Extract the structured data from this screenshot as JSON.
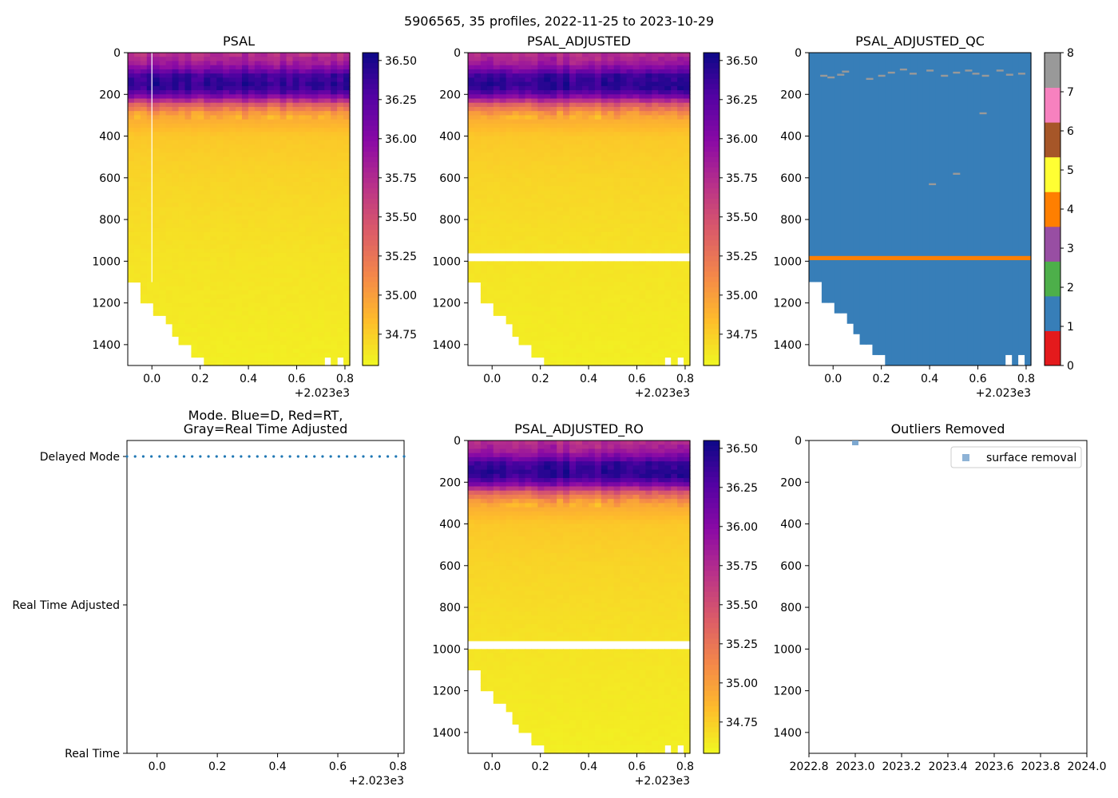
{
  "suptitle": "5906565, 35 profiles, 2022-11-25 to 2023-10-29",
  "colors": {
    "mode_dot": "#1f77b4",
    "surface_removal": "#7aa6cf",
    "adjusted_gap": "#ffffff"
  },
  "chart_data": [
    {
      "id": "psal",
      "type": "heatmap",
      "title": "PSAL",
      "x_ticks": [
        "0.0",
        "0.2",
        "0.4",
        "0.6",
        "0.8"
      ],
      "x_offset_label": "+2.023e3",
      "xlim": [
        -0.1,
        0.82
      ],
      "y_ticks": [
        "0",
        "200",
        "400",
        "600",
        "800",
        "1000",
        "1200",
        "1400"
      ],
      "ylim": [
        1500,
        0
      ],
      "colorbar_ticks": [
        "36.50",
        "36.25",
        "36.00",
        "35.75",
        "35.50",
        "35.25",
        "35.00",
        "34.75"
      ],
      "colorbar_range": [
        34.55,
        36.55
      ],
      "colormap": "plasma_r",
      "salinity_profile": [
        {
          "depth": 0,
          "value": 35.7
        },
        {
          "depth": 60,
          "value": 35.9
        },
        {
          "depth": 110,
          "value": 36.35
        },
        {
          "depth": 160,
          "value": 36.45
        },
        {
          "depth": 200,
          "value": 36.2
        },
        {
          "depth": 250,
          "value": 35.4
        },
        {
          "depth": 300,
          "value": 34.95
        },
        {
          "depth": 400,
          "value": 34.78
        },
        {
          "depth": 600,
          "value": 34.72
        },
        {
          "depth": 1000,
          "value": 34.65
        },
        {
          "depth": 1500,
          "value": 34.6
        }
      ],
      "adjusted_gap_depth": null
    },
    {
      "id": "psal_adjusted",
      "type": "heatmap",
      "title": "PSAL_ADJUSTED",
      "x_ticks": [
        "0.0",
        "0.2",
        "0.4",
        "0.6",
        "0.8"
      ],
      "x_offset_label": "+2.023e3",
      "xlim": [
        -0.1,
        0.82
      ],
      "y_ticks": [
        "0",
        "200",
        "400",
        "600",
        "800",
        "1000",
        "1200",
        "1400"
      ],
      "ylim": [
        1500,
        0
      ],
      "colorbar_ticks": [
        "36.50",
        "36.25",
        "36.00",
        "35.75",
        "35.50",
        "35.25",
        "35.00",
        "34.75"
      ],
      "colorbar_range": [
        34.55,
        36.55
      ],
      "colormap": "plasma_r",
      "adjusted_gap_depth": [
        975,
        995
      ]
    },
    {
      "id": "psal_adjusted_qc",
      "type": "heatmap",
      "title": "PSAL_ADJUSTED_QC",
      "x_ticks": [
        "0.0",
        "0.2",
        "0.4",
        "0.6",
        "0.8"
      ],
      "x_offset_label": "+2.023e3",
      "xlim": [
        -0.1,
        0.82
      ],
      "y_ticks": [
        "0",
        "200",
        "400",
        "600",
        "800",
        "1000",
        "1200",
        "1400"
      ],
      "ylim": [
        1500,
        0
      ],
      "colorbar_ticks": [
        "0",
        "1",
        "2",
        "3",
        "4",
        "5",
        "6",
        "7",
        "8"
      ],
      "qc_colors": [
        "#e41a1c",
        "#377eb8",
        "#4daf4a",
        "#984ea3",
        "#ff7f00",
        "#ffff33",
        "#a65628",
        "#f781bf",
        "#999999"
      ],
      "dominant_flag": 1,
      "flag4_band_depth": [
        975,
        995
      ],
      "flag8_marks": [
        {
          "x": -0.04,
          "depth": 110
        },
        {
          "x": -0.01,
          "depth": 118
        },
        {
          "x": 0.03,
          "depth": 105
        },
        {
          "x": 0.05,
          "depth": 90
        },
        {
          "x": 0.15,
          "depth": 125
        },
        {
          "x": 0.2,
          "depth": 110
        },
        {
          "x": 0.24,
          "depth": 95
        },
        {
          "x": 0.29,
          "depth": 80
        },
        {
          "x": 0.33,
          "depth": 100
        },
        {
          "x": 0.4,
          "depth": 85
        },
        {
          "x": 0.46,
          "depth": 110
        },
        {
          "x": 0.51,
          "depth": 95
        },
        {
          "x": 0.56,
          "depth": 85
        },
        {
          "x": 0.59,
          "depth": 100
        },
        {
          "x": 0.63,
          "depth": 110
        },
        {
          "x": 0.69,
          "depth": 85
        },
        {
          "x": 0.73,
          "depth": 105
        },
        {
          "x": 0.78,
          "depth": 100
        },
        {
          "x": 0.62,
          "depth": 290
        },
        {
          "x": 0.51,
          "depth": 580
        },
        {
          "x": 0.41,
          "depth": 630
        }
      ]
    },
    {
      "id": "mode",
      "type": "scatter",
      "title": "Mode. Blue=D, Red=RT,\nGray=Real Time Adjusted",
      "title_lines": [
        "Mode. Blue=D, Red=RT,",
        "Gray=Real Time Adjusted"
      ],
      "y_categories": [
        "Delayed Mode",
        "Real Time Adjusted",
        "Real Time"
      ],
      "x_ticks": [
        "0.0",
        "0.2",
        "0.4",
        "0.6",
        "0.8"
      ],
      "x_offset_label": "+2.023e3",
      "xlim": [
        -0.1,
        0.82
      ],
      "n_points": 35,
      "x_start": -0.1,
      "x_end": 0.82,
      "point_category": "Delayed Mode"
    },
    {
      "id": "psal_adjusted_ro",
      "type": "heatmap",
      "title": "PSAL_ADJUSTED_RO",
      "x_ticks": [
        "0.0",
        "0.2",
        "0.4",
        "0.6",
        "0.8"
      ],
      "x_offset_label": "+2.023e3",
      "xlim": [
        -0.1,
        0.82
      ],
      "y_ticks": [
        "0",
        "200",
        "400",
        "600",
        "800",
        "1000",
        "1200",
        "1400"
      ],
      "ylim": [
        1500,
        0
      ],
      "colorbar_ticks": [
        "36.50",
        "36.25",
        "36.00",
        "35.75",
        "35.50",
        "35.25",
        "35.00",
        "34.75"
      ],
      "colorbar_range": [
        34.55,
        36.55
      ],
      "colormap": "plasma_r",
      "adjusted_gap_depth": [
        975,
        995
      ]
    },
    {
      "id": "outliers",
      "type": "scatter",
      "title": "Outliers Removed",
      "x_ticks": [
        "2022.8",
        "2023.0",
        "2023.2",
        "2023.4",
        "2023.6",
        "2023.8",
        "2024.0"
      ],
      "xlim": [
        2022.8,
        2024.0
      ],
      "y_ticks": [
        "0",
        "200",
        "400",
        "600",
        "800",
        "1000",
        "1200",
        "1400"
      ],
      "ylim": [
        1500,
        0
      ],
      "legend": [
        "surface removal"
      ],
      "legend_position": "top-right",
      "points": [
        {
          "x": 2023.0,
          "depth": 2,
          "series": "surface removal"
        },
        {
          "x": 2023.0,
          "depth": 8,
          "series": "surface removal"
        }
      ]
    }
  ]
}
